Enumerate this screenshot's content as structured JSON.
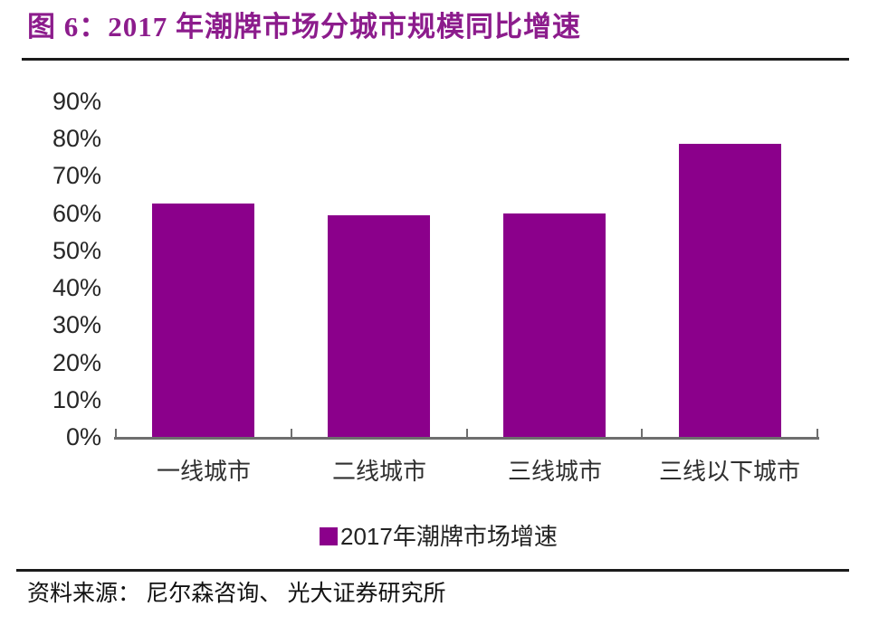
{
  "figure": {
    "title": "图 6：2017 年潮牌市场分城市规模同比增速",
    "source": "资料来源： 尼尔森咨询、 光大证券研究所"
  },
  "legend": {
    "label": "2017年潮牌市场增速",
    "swatch_color": "#8B008B"
  },
  "chart_data": {
    "type": "bar",
    "title": "2017 年潮牌市场分城市规模同比增速",
    "categories": [
      "一线城市",
      "二线城市",
      "三线城市",
      "三线以下城市"
    ],
    "series": [
      {
        "name": "2017年潮牌市场增速",
        "values": [
          62.5,
          59.5,
          60,
          78.5
        ]
      }
    ],
    "unit": "%",
    "xlabel": "",
    "ylabel": "",
    "ylim": [
      0,
      90
    ],
    "ytick_step": 10,
    "yticks": [
      "0%",
      "10%",
      "20%",
      "30%",
      "40%",
      "50%",
      "60%",
      "70%",
      "80%",
      "90%"
    ],
    "grid": false,
    "legend_position": "bottom",
    "bar_color": "#8B008B"
  },
  "colors": {
    "bar": "#8B008B",
    "title": "#8C1C8C",
    "axis": "#6e6e6e",
    "rule": "#1b1b1b",
    "tick_text": "#262626"
  }
}
